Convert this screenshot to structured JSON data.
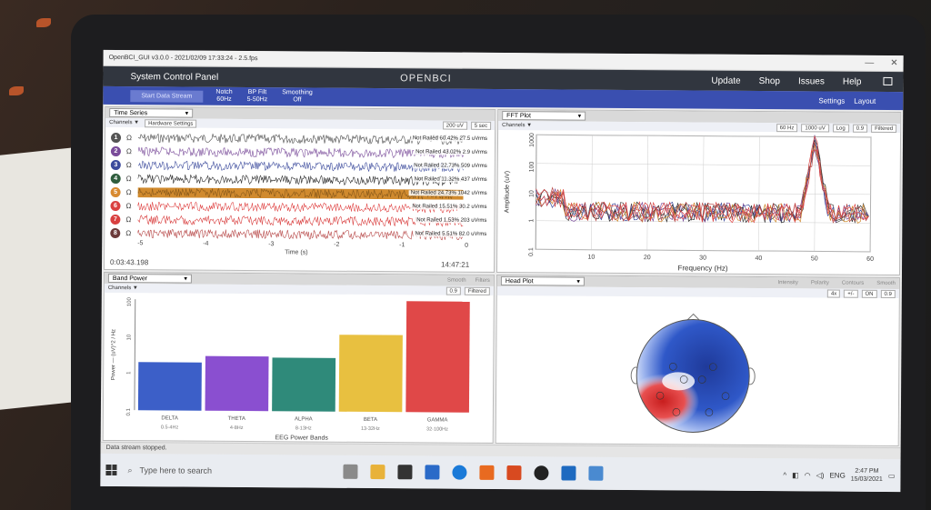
{
  "window": {
    "title": "OpenBCI_GUI v3.0.0 - 2021/02/09 17:33:24 - 2.5.fps"
  },
  "header": {
    "title": "System Control Panel",
    "logo": "OPENBCI",
    "menu": [
      "Update",
      "Shop",
      "Issues",
      "Help"
    ]
  },
  "toolbar": {
    "start_stop_label": "Start Data Stream",
    "options": [
      {
        "name": "Notch",
        "value": "60Hz"
      },
      {
        "name": "BP Filt",
        "value": "5-50Hz"
      },
      {
        "name": "Smoothing",
        "value": "Off"
      }
    ],
    "settings_label": "Settings",
    "layout_label": "Layout"
  },
  "time_series": {
    "widget_select": "Time Series",
    "channels_label": "Channels ▼",
    "hardware_settings": "Hardware Settings",
    "scale": "200 uV",
    "window": "5 sec",
    "channels": [
      {
        "num": "1",
        "color": "#555555",
        "label": "Not Railed 60.42% 27.5 uVrms",
        "wave": "#4a4a4a"
      },
      {
        "num": "2",
        "color": "#7a4c9a",
        "label": "Not Railed 43.02% 2.9 uVrms",
        "wave": "#7a4c9a"
      },
      {
        "num": "3",
        "color": "#3b4a9c",
        "label": "Not Railed 22.73% 509 uVrms",
        "wave": "#3b4a9c"
      },
      {
        "num": "4",
        "color": "#2f5d3d",
        "label": "Not Railed 11.32% 437 uVrms",
        "wave": "#2b2b2b"
      },
      {
        "num": "5",
        "color": "#d88a30",
        "label": "Not Railed 24.73% 1042 uVrms",
        "wave": "#d08a2e"
      },
      {
        "num": "6",
        "color": "#d94040",
        "label": "Not Railed 15.51% 30.2 uVrms",
        "wave": "#e04848"
      },
      {
        "num": "7",
        "color": "#d94040",
        "label": "Not Railed 1.53% 203 uVrms",
        "wave": "#d94040"
      },
      {
        "num": "8",
        "color": "#6b3a3a",
        "label": "Not Railed 5.51% 82.0 uVrms",
        "wave": "#b84a4a"
      }
    ],
    "x_ticks": [
      "-5",
      "-4",
      "-3",
      "-2",
      "-1",
      "0"
    ],
    "x_label": "Time (s)",
    "elapsed": "0:03:43.198",
    "clock": "14:47:21"
  },
  "fft": {
    "widget_select": "FFT Plot",
    "channels_label": "Channels ▼",
    "dropdowns": [
      "60 Hz",
      "1000 uV",
      "Log",
      "0.9",
      "Filtered"
    ],
    "x_ticks": [
      "10",
      "20",
      "30",
      "40",
      "50",
      "60"
    ],
    "y_ticks": [
      "1000",
      "100",
      "10",
      "1",
      "0.1"
    ],
    "x_label": "Frequency (Hz)",
    "y_label": "Amplitude (uV)"
  },
  "band_power": {
    "widget_select": "Band Power",
    "header_right": [
      "Smooth",
      "Filters"
    ],
    "channels_label": "Channels ▼",
    "dropdowns": [
      "0.9",
      "Filtered"
    ],
    "y_label": "Power — (uV)^2 / Hz",
    "y_ticks": [
      "100",
      "10",
      "1",
      "0.1"
    ],
    "x_label": "EEG Power Bands",
    "chart_data": {
      "type": "bar",
      "categories": [
        "DELTA",
        "THETA",
        "ALPHA",
        "BETA",
        "GAMMA"
      ],
      "ranges": [
        "0.5-4Hz",
        "4-8Hz",
        "8-13Hz",
        "13-32Hz",
        "32-100Hz"
      ],
      "values": [
        2.0,
        3.0,
        2.8,
        12.0,
        100.0
      ],
      "colors": [
        "#3c5fc8",
        "#8a4fd0",
        "#2f8a7a",
        "#e8c040",
        "#e04848"
      ],
      "ylim": [
        0.1,
        100
      ],
      "scale": "log"
    }
  },
  "head_plot": {
    "widget_select": "Head Plot",
    "header_right": [
      "Intensity",
      "Polarity",
      "Contours",
      "Smooth"
    ],
    "dropdowns": [
      "4x",
      "+/-",
      "ON",
      "0.9"
    ]
  },
  "status": {
    "message": "Data stream stopped."
  },
  "taskbar": {
    "search_placeholder": "Type here to search",
    "lang": "ENG",
    "time": "2:47 PM",
    "date": "15/03/2021"
  }
}
